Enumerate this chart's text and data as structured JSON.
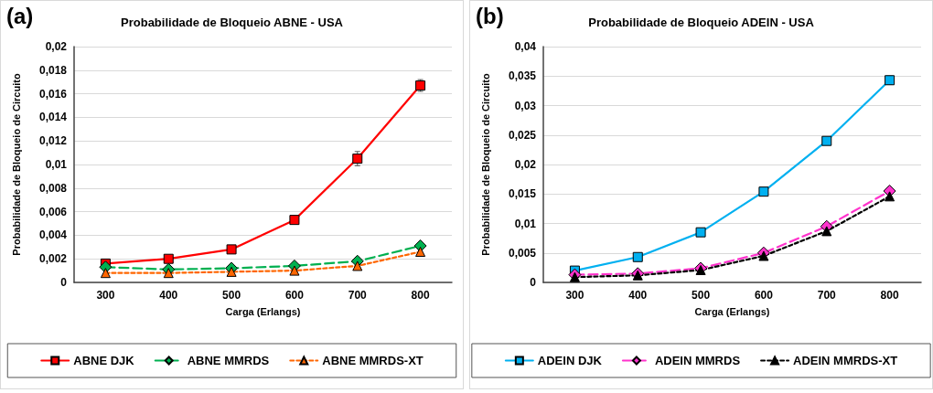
{
  "chart_data": [
    {
      "type": "line",
      "title": "Probabilidade de Bloqueio ABNE - USA",
      "xlabel": "Carga (Erlangs)",
      "ylabel": "Probabilidade de Bloqueio de Circuito",
      "annotations": [
        "(a)"
      ],
      "categories": [
        "300",
        "400",
        "500",
        "600",
        "700",
        "800"
      ],
      "series": [
        {
          "name": "ABNE DJK",
          "color": "#ff0000",
          "marker": "square",
          "line_style": "solid",
          "values": [
            0.0016,
            0.002,
            0.0028,
            0.0053,
            0.0105,
            0.0167
          ],
          "errors": [
            null,
            null,
            null,
            null,
            0.0006,
            0.0005
          ]
        },
        {
          "name": "ABNE MMRDS",
          "color": "#00b050",
          "marker": "diamond",
          "line_style": "dashed",
          "values": [
            0.0013,
            0.0011,
            0.0012,
            0.0014,
            0.0018,
            0.0031
          ]
        },
        {
          "name": "ABNE MMRDS-XT",
          "color": "#ff6600",
          "marker": "triangle",
          "line_style": "dotted",
          "values": [
            0.0008,
            0.0008,
            0.0009,
            0.001,
            0.0014,
            0.0026
          ]
        }
      ],
      "ylim": [
        0,
        0.02
      ],
      "yticks": [
        {
          "value": 0,
          "label": "0"
        },
        {
          "value": 0.002,
          "label": "0,002"
        },
        {
          "value": 0.004,
          "label": "0,004"
        },
        {
          "value": 0.006,
          "label": "0,006"
        },
        {
          "value": 0.008,
          "label": "0,008"
        },
        {
          "value": 0.01,
          "label": "0,01"
        },
        {
          "value": 0.012,
          "label": "0,012"
        },
        {
          "value": 0.014,
          "label": "0,014"
        },
        {
          "value": 0.016,
          "label": "0,016"
        },
        {
          "value": 0.018,
          "label": "0,018"
        },
        {
          "value": 0.02,
          "label": "0,02"
        }
      ],
      "grid": "y",
      "legend": "bottom"
    },
    {
      "type": "line",
      "title": "Probabilidade de Bloqueio ADEIN - USA",
      "xlabel": "Carga (Erlangs)",
      "ylabel": "Probabilidade de Bloqueio de Circuito",
      "annotations": [
        "(b)"
      ],
      "categories": [
        "300",
        "400",
        "500",
        "600",
        "700",
        "800"
      ],
      "series": [
        {
          "name": "ADEIN DJK",
          "color": "#00b0f0",
          "marker": "square",
          "line_style": "solid",
          "values": [
            0.002,
            0.0043,
            0.0085,
            0.0154,
            0.024,
            0.0343
          ],
          "errors": [
            null,
            null,
            null,
            0.0005,
            null,
            0.0007
          ]
        },
        {
          "name": "ADEIN MMRDS",
          "color": "#ff33cc",
          "marker": "diamond",
          "line_style": "dashed",
          "values": [
            0.0013,
            0.0015,
            0.0024,
            0.005,
            0.0095,
            0.0155
          ]
        },
        {
          "name": "ADEIN MMRDS-XT",
          "color": "#000000",
          "marker": "triangle",
          "line_style": "dotted",
          "values": [
            0.0009,
            0.0012,
            0.0021,
            0.0045,
            0.0087,
            0.0146
          ]
        }
      ],
      "ylim": [
        0,
        0.04
      ],
      "yticks": [
        {
          "value": 0,
          "label": "0"
        },
        {
          "value": 0.005,
          "label": "0,005"
        },
        {
          "value": 0.01,
          "label": "0,01"
        },
        {
          "value": 0.015,
          "label": "0,015"
        },
        {
          "value": 0.02,
          "label": "0,02"
        },
        {
          "value": 0.025,
          "label": "0,025"
        },
        {
          "value": 0.03,
          "label": "0,03"
        },
        {
          "value": 0.035,
          "label": "0,035"
        },
        {
          "value": 0.04,
          "label": "0,04"
        }
      ],
      "grid": "y",
      "legend": "bottom"
    }
  ]
}
